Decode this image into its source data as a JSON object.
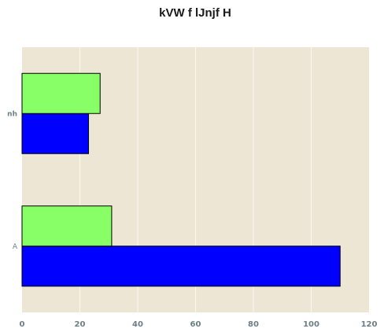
{
  "chart_data": {
    "type": "bar",
    "orientation": "horizontal",
    "title": "kVW f lJnjf H",
    "xlabel": "",
    "ylabel": "",
    "categories": [
      "A",
      "nh"
    ],
    "series": [
      {
        "values": [
          110,
          23
        ],
        "color": "#0000ff"
      },
      {
        "values": [
          31,
          27
        ],
        "color": "#88ff66"
      }
    ],
    "xlim": [
      0,
      120
    ],
    "xticks": [
      0,
      20,
      40,
      60,
      80,
      100,
      120
    ],
    "grid": true,
    "background": "#ede6d4",
    "gridColor": "#fbf8f0"
  }
}
